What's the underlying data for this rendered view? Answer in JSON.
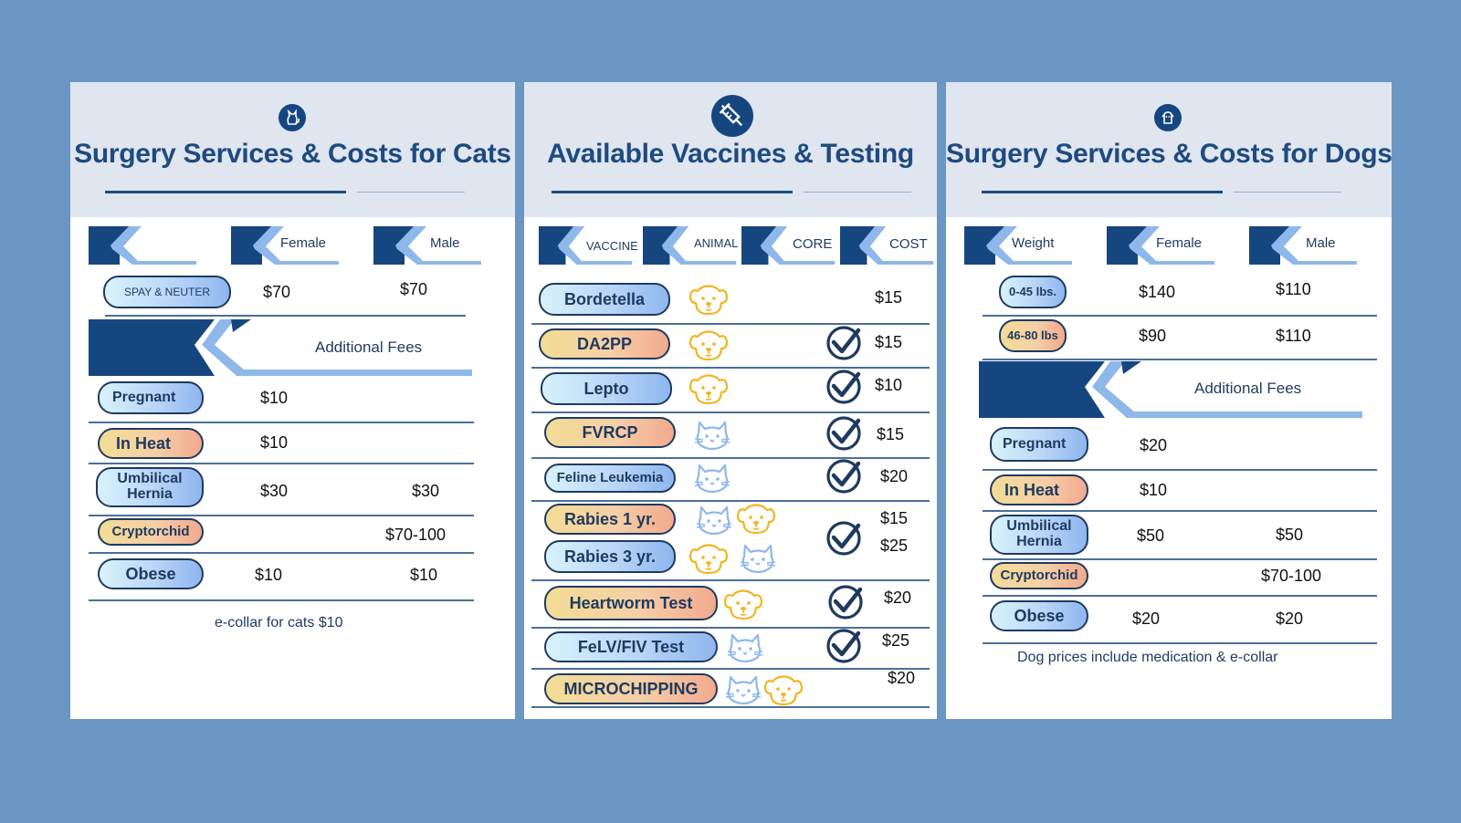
{
  "colors": {
    "background": "#6b96c4",
    "navy": "#16467f",
    "light_blue": "#8fb8ea",
    "header_bg": "#dfe6ef",
    "dog_icon": "#f2b520",
    "cat_icon": "#8fb8ea"
  },
  "cats": {
    "icon": "cat-icon",
    "title": "Surgery Services & Costs for Cats",
    "headers": [
      "Female",
      "Male"
    ],
    "spay": {
      "label": "SPAY & NEUTER",
      "female": "$70",
      "male": "$70"
    },
    "additional_label": "Additional Fees",
    "fees": [
      {
        "label": "Pregnant",
        "female": "$10",
        "male": ""
      },
      {
        "label": "In Heat",
        "female": "$10",
        "male": ""
      },
      {
        "label": "Umbilical Hernia",
        "female": "$30",
        "male": "$30"
      },
      {
        "label": "Cryptorchid",
        "female": "",
        "male": "$70-100"
      },
      {
        "label": "Obese",
        "female": "$10",
        "male": "$10"
      }
    ],
    "note": "e-collar for cats $10"
  },
  "vaccines": {
    "icon": "syringe-icon",
    "title": "Available Vaccines & Testing",
    "headers": [
      "VACCINE",
      "ANIMAL",
      "CORE",
      "COST"
    ],
    "rows": [
      {
        "name": "Bordetella",
        "animals": [
          "dog"
        ],
        "core": false,
        "cost": "$15"
      },
      {
        "name": "DA2PP",
        "animals": [
          "dog"
        ],
        "core": true,
        "cost": "$15"
      },
      {
        "name": "Lepto",
        "animals": [
          "dog"
        ],
        "core": true,
        "cost": "$10"
      },
      {
        "name": "FVRCP",
        "animals": [
          "cat"
        ],
        "core": true,
        "cost": "$15"
      },
      {
        "name": "Feline Leukemia",
        "animals": [
          "cat"
        ],
        "core": true,
        "cost": "$20"
      },
      {
        "name": "Rabies 1 yr.",
        "animals": [
          "cat",
          "dog"
        ],
        "core": true,
        "cost": "$15"
      },
      {
        "name": "Rabies 3 yr.",
        "animals": [
          "dog",
          "cat"
        ],
        "core": true,
        "cost": "$25"
      },
      {
        "name": "Heartworm Test",
        "animals": [
          "dog"
        ],
        "core": true,
        "cost": "$20"
      },
      {
        "name": "FeLV/FIV Test",
        "animals": [
          "cat"
        ],
        "core": true,
        "cost": "$25"
      },
      {
        "name": "MICROCHIPPING",
        "animals": [
          "cat",
          "dog"
        ],
        "core": false,
        "cost": "$20"
      }
    ]
  },
  "dogs": {
    "icon": "dog-icon",
    "title": "Surgery Services & Costs for Dogs",
    "headers": [
      "Weight",
      "Female",
      "Male"
    ],
    "weights": [
      {
        "label": "0-45 lbs.",
        "female": "$140",
        "male": "$110"
      },
      {
        "label": "46-80 lbs",
        "female": "$90",
        "male": "$110"
      }
    ],
    "additional_label": "Additional Fees",
    "fees": [
      {
        "label": "Pregnant",
        "female": "$20",
        "male": ""
      },
      {
        "label": "In Heat",
        "female": "$10",
        "male": ""
      },
      {
        "label": "Umbilical Hernia",
        "female": "$50",
        "male": "$50"
      },
      {
        "label": "Cryptorchid",
        "female": "",
        "male": "$70-100"
      },
      {
        "label": "Obese",
        "female": "$20",
        "male": "$20"
      }
    ],
    "note": "Dog prices include medication & e-collar"
  }
}
